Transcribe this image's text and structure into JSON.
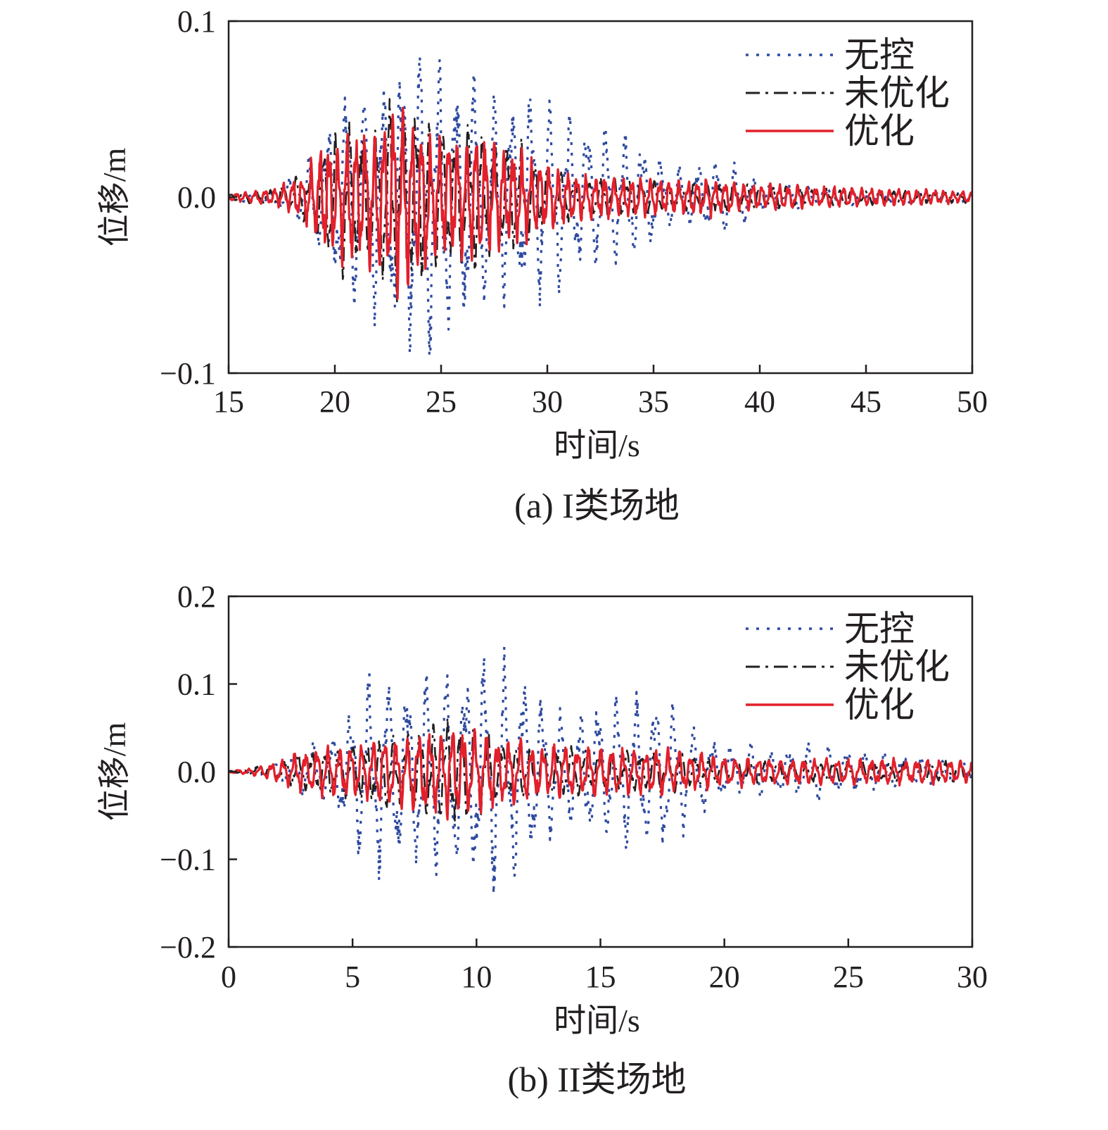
{
  "chart_data": [
    {
      "type": "line",
      "caption": "(a) I类场地",
      "xlabel": "时间/s",
      "ylabel": "位移/m",
      "xlim": [
        15,
        50
      ],
      "ylim": [
        -0.1,
        0.1
      ],
      "xticks": [
        "15",
        "20",
        "25",
        "30",
        "35",
        "40",
        "45",
        "50"
      ],
      "yticks": [
        "−0.1",
        "0.0",
        "0.1"
      ],
      "ytick_values": [
        -0.1,
        0.0,
        0.1
      ],
      "legend_position": "top-right",
      "envelope": {
        "t": [
          15,
          17,
          18.5,
          19.5,
          20.5,
          21.5,
          22.5,
          23.5,
          24.5,
          25.5,
          26.5,
          27.5,
          28.5,
          29.5,
          31,
          32,
          33,
          34,
          35,
          36,
          38,
          39,
          40,
          42,
          45,
          48,
          50
        ],
        "series": [
          {
            "name": "无控",
            "color": "#2e4aa0",
            "style": "dotted",
            "freq": 1.15,
            "amp": [
              0.002,
              0.004,
              0.015,
              0.035,
              0.055,
              0.06,
              0.07,
              0.08,
              0.085,
              0.07,
              0.065,
              0.055,
              0.055,
              0.055,
              0.045,
              0.04,
              0.035,
              0.035,
              0.025,
              0.015,
              0.02,
              0.015,
              0.01,
              0.006,
              0.004,
              0.003,
              0.003
            ]
          },
          {
            "name": "未优化",
            "color": "#231f20",
            "style": "dashdot",
            "freq": 1.6,
            "amp": [
              0.002,
              0.004,
              0.012,
              0.028,
              0.04,
              0.035,
              0.05,
              0.055,
              0.04,
              0.035,
              0.04,
              0.03,
              0.03,
              0.02,
              0.012,
              0.01,
              0.01,
              0.01,
              0.008,
              0.007,
              0.008,
              0.007,
              0.006,
              0.005,
              0.004,
              0.003,
              0.003
            ]
          },
          {
            "name": "优化",
            "color": "#e2202b",
            "style": "solid",
            "freq": 2.3,
            "amp": [
              0.002,
              0.004,
              0.012,
              0.03,
              0.038,
              0.035,
              0.048,
              0.05,
              0.035,
              0.032,
              0.035,
              0.028,
              0.025,
              0.02,
              0.014,
              0.012,
              0.012,
              0.01,
              0.01,
              0.009,
              0.01,
              0.008,
              0.007,
              0.006,
              0.005,
              0.004,
              0.003
            ]
          }
        ]
      }
    },
    {
      "type": "line",
      "caption": "(b) II类场地",
      "xlabel": "时间/s",
      "ylabel": "位移/m",
      "xlim": [
        0,
        30
      ],
      "ylim": [
        -0.2,
        0.2
      ],
      "xticks": [
        "0",
        "5",
        "10",
        "15",
        "20",
        "25",
        "30"
      ],
      "yticks": [
        "−0.2",
        "−0.1",
        "0.0",
        "0.1",
        "0.2"
      ],
      "ytick_values": [
        -0.2,
        -0.1,
        0.0,
        0.1,
        0.2
      ],
      "legend_position": "top-right",
      "envelope": {
        "t": [
          0,
          1,
          2,
          3,
          4,
          5,
          6,
          7,
          8,
          9,
          10,
          10.5,
          11,
          12,
          13,
          14,
          15,
          16,
          17,
          17.5,
          18,
          19,
          20,
          22,
          24,
          26,
          28,
          30
        ],
        "series": [
          {
            "name": "无控",
            "color": "#2e4aa0",
            "style": "dotted",
            "freq": 1.3,
            "amp": [
              0.001,
              0.004,
              0.01,
              0.025,
              0.035,
              0.075,
              0.11,
              0.1,
              0.1,
              0.11,
              0.12,
              0.13,
              0.12,
              0.1,
              0.07,
              0.06,
              0.075,
              0.08,
              0.085,
              0.085,
              0.07,
              0.045,
              0.03,
              0.025,
              0.03,
              0.02,
              0.015,
              0.01
            ]
          },
          {
            "name": "未优化",
            "color": "#231f20",
            "style": "dashdot",
            "freq": 1.8,
            "amp": [
              0.001,
              0.004,
              0.01,
              0.02,
              0.025,
              0.03,
              0.035,
              0.04,
              0.045,
              0.06,
              0.045,
              0.04,
              0.03,
              0.025,
              0.025,
              0.025,
              0.02,
              0.02,
              0.022,
              0.022,
              0.022,
              0.015,
              0.012,
              0.01,
              0.01,
              0.01,
              0.01,
              0.01
            ]
          },
          {
            "name": "优化",
            "color": "#e2202b",
            "style": "solid",
            "freq": 2.2,
            "amp": [
              0.001,
              0.004,
              0.012,
              0.022,
              0.028,
              0.03,
              0.035,
              0.038,
              0.045,
              0.05,
              0.045,
              0.04,
              0.035,
              0.03,
              0.028,
              0.028,
              0.028,
              0.025,
              0.025,
              0.025,
              0.022,
              0.02,
              0.016,
              0.014,
              0.014,
              0.014,
              0.013,
              0.012
            ]
          }
        ]
      }
    }
  ]
}
